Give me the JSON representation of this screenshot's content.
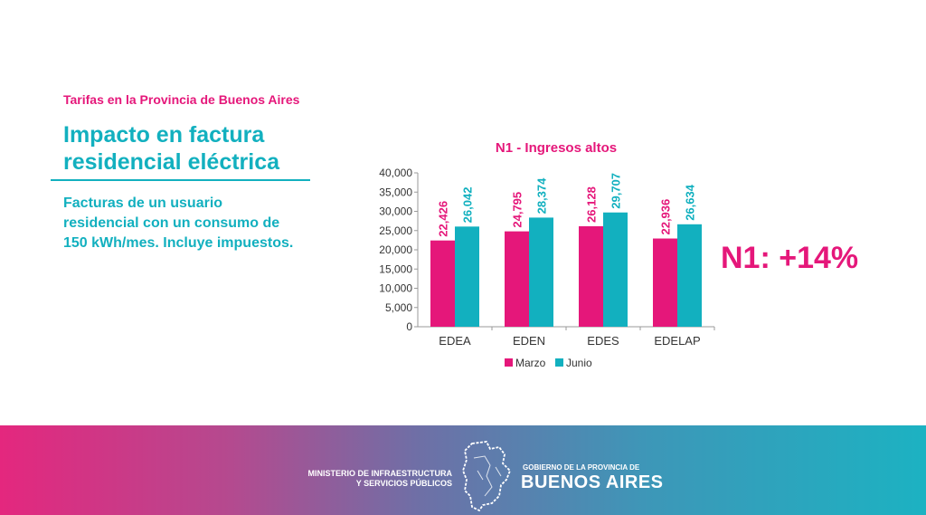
{
  "header": {
    "kicker": "Tarifas en la Provincia de Buenos Aires",
    "title": "Impacto en factura residencial eléctrica",
    "description": "Facturas de un usuario residencial con un consumo de 150 kWh/mes. Incluye impuestos."
  },
  "callout": "N1: +14%",
  "chart_data": {
    "type": "bar",
    "title": "N1 - Ingresos altos",
    "categories": [
      "EDEA",
      "EDEN",
      "EDES",
      "EDELAP"
    ],
    "series": [
      {
        "name": "Marzo",
        "values": [
          22426,
          24795,
          26128,
          22936
        ],
        "labels": [
          "22,426",
          "24,795",
          "26,128",
          "22,936"
        ],
        "color": "#e5177a"
      },
      {
        "name": "Junio",
        "values": [
          26042,
          28374,
          29707,
          26634
        ],
        "labels": [
          "26,042",
          "28,374",
          "29,707",
          "26,634"
        ],
        "color": "#12b0bf"
      }
    ],
    "ylim": [
      0,
      40000
    ],
    "yticks": [
      0,
      5000,
      10000,
      15000,
      20000,
      25000,
      30000,
      35000,
      40000
    ],
    "ytick_labels": [
      "0",
      "5,000",
      "10,000",
      "15,000",
      "20,000",
      "25,000",
      "30,000",
      "35,000",
      "40,000"
    ],
    "grid": false,
    "legend_position": "bottom"
  },
  "footer": {
    "ministry_line1": "MINISTERIO DE INFRAESTRUCTURA",
    "ministry_line2": "Y SERVICIOS PÚBLICOS",
    "gov_line1": "GOBIERNO DE LA PROVINCIA DE",
    "gov_line2": "BUENOS AIRES"
  }
}
